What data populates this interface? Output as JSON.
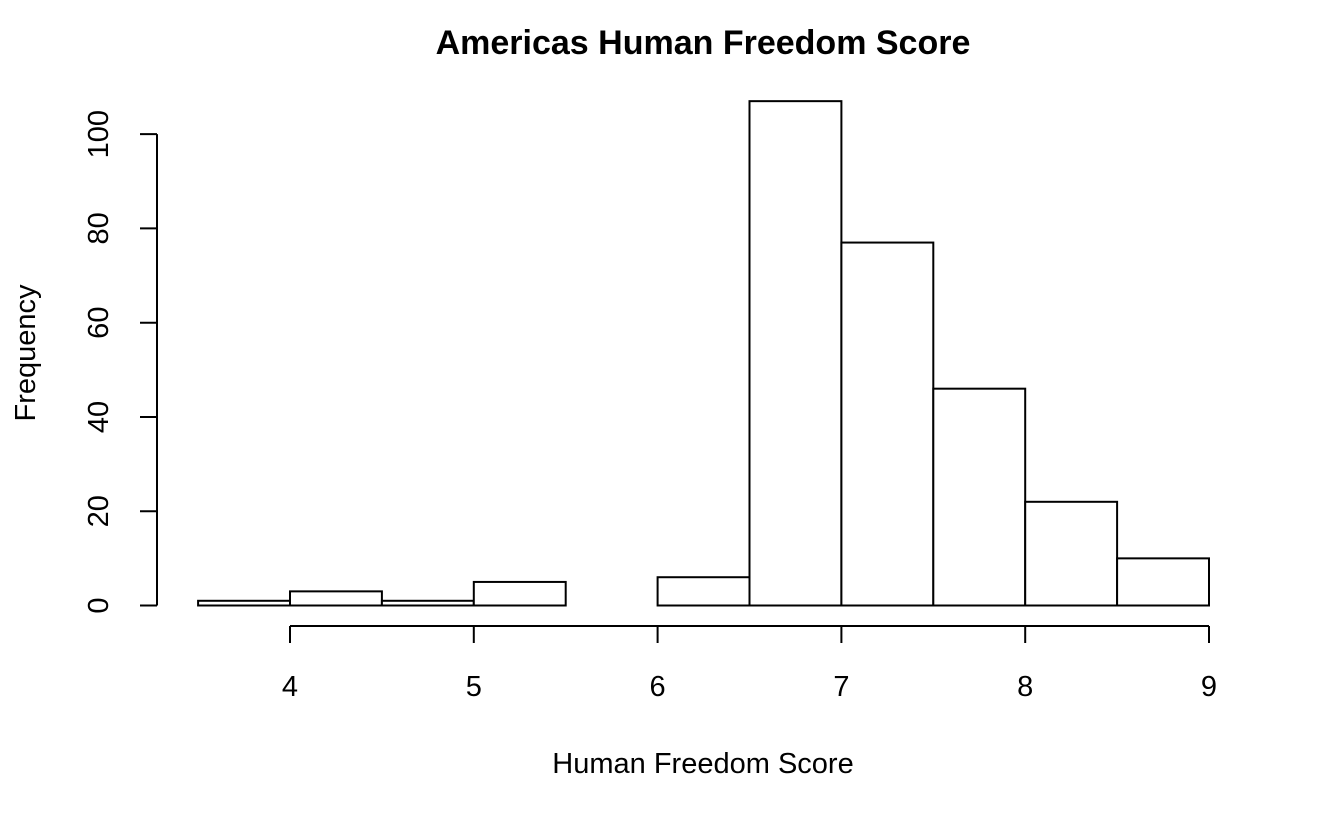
{
  "chart_data": {
    "type": "bar",
    "title": "Americas Human Freedom Score",
    "xlabel": "Human Freedom Score",
    "ylabel": "Frequency",
    "bins": [
      {
        "start": 3.5,
        "end": 4.0,
        "count": 1
      },
      {
        "start": 4.0,
        "end": 4.5,
        "count": 3
      },
      {
        "start": 4.5,
        "end": 5.0,
        "count": 1
      },
      {
        "start": 5.0,
        "end": 5.5,
        "count": 5
      },
      {
        "start": 5.5,
        "end": 6.0,
        "count": 0
      },
      {
        "start": 6.0,
        "end": 6.5,
        "count": 6
      },
      {
        "start": 6.5,
        "end": 7.0,
        "count": 107
      },
      {
        "start": 7.0,
        "end": 7.5,
        "count": 77
      },
      {
        "start": 7.5,
        "end": 8.0,
        "count": 46
      },
      {
        "start": 8.0,
        "end": 8.5,
        "count": 22
      },
      {
        "start": 8.5,
        "end": 9.0,
        "count": 10
      }
    ],
    "x_ticks": [
      4,
      5,
      6,
      7,
      8,
      9
    ],
    "y_ticks": [
      0,
      20,
      40,
      60,
      80,
      100
    ],
    "xlim": [
      3.5,
      9
    ],
    "ylim": [
      0,
      107
    ],
    "grid": false,
    "legend": false,
    "colors": {
      "bar_fill": "#ffffff",
      "bar_stroke": "#000000"
    }
  }
}
